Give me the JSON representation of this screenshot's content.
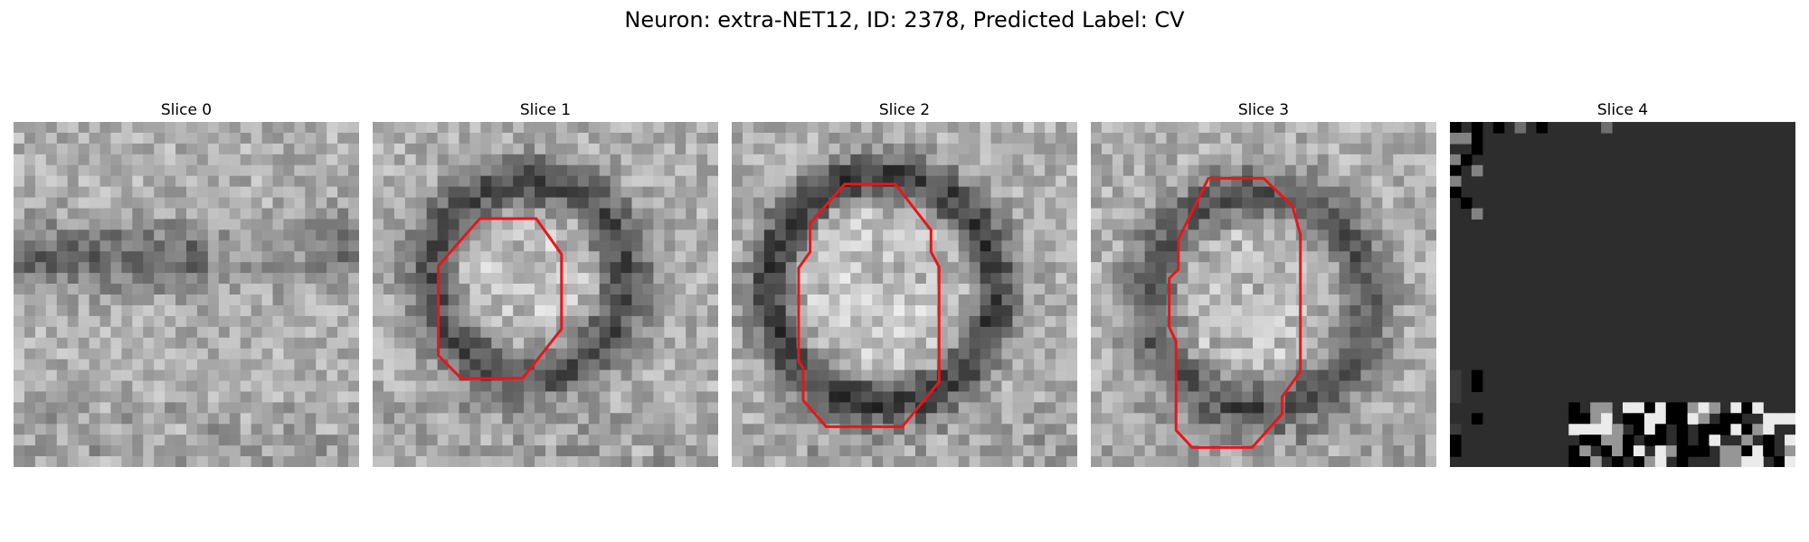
{
  "figure": {
    "title": "Neuron: extra-NET12, ID: 2378, Predicted Label: CV"
  },
  "panels": [
    {
      "title": "Slice 0",
      "has_contour": false,
      "texture": "gray"
    },
    {
      "title": "Slice 1",
      "has_contour": true,
      "texture": "gray"
    },
    {
      "title": "Slice 2",
      "has_contour": true,
      "texture": "gray"
    },
    {
      "title": "Slice 3",
      "has_contour": true,
      "texture": "gray"
    },
    {
      "title": "Slice 4",
      "has_contour": false,
      "texture": "dark-noisy"
    }
  ],
  "colors": {
    "contour": "#e8161a",
    "background": "#ffffff",
    "dark_fill": "#2d2d2d"
  }
}
